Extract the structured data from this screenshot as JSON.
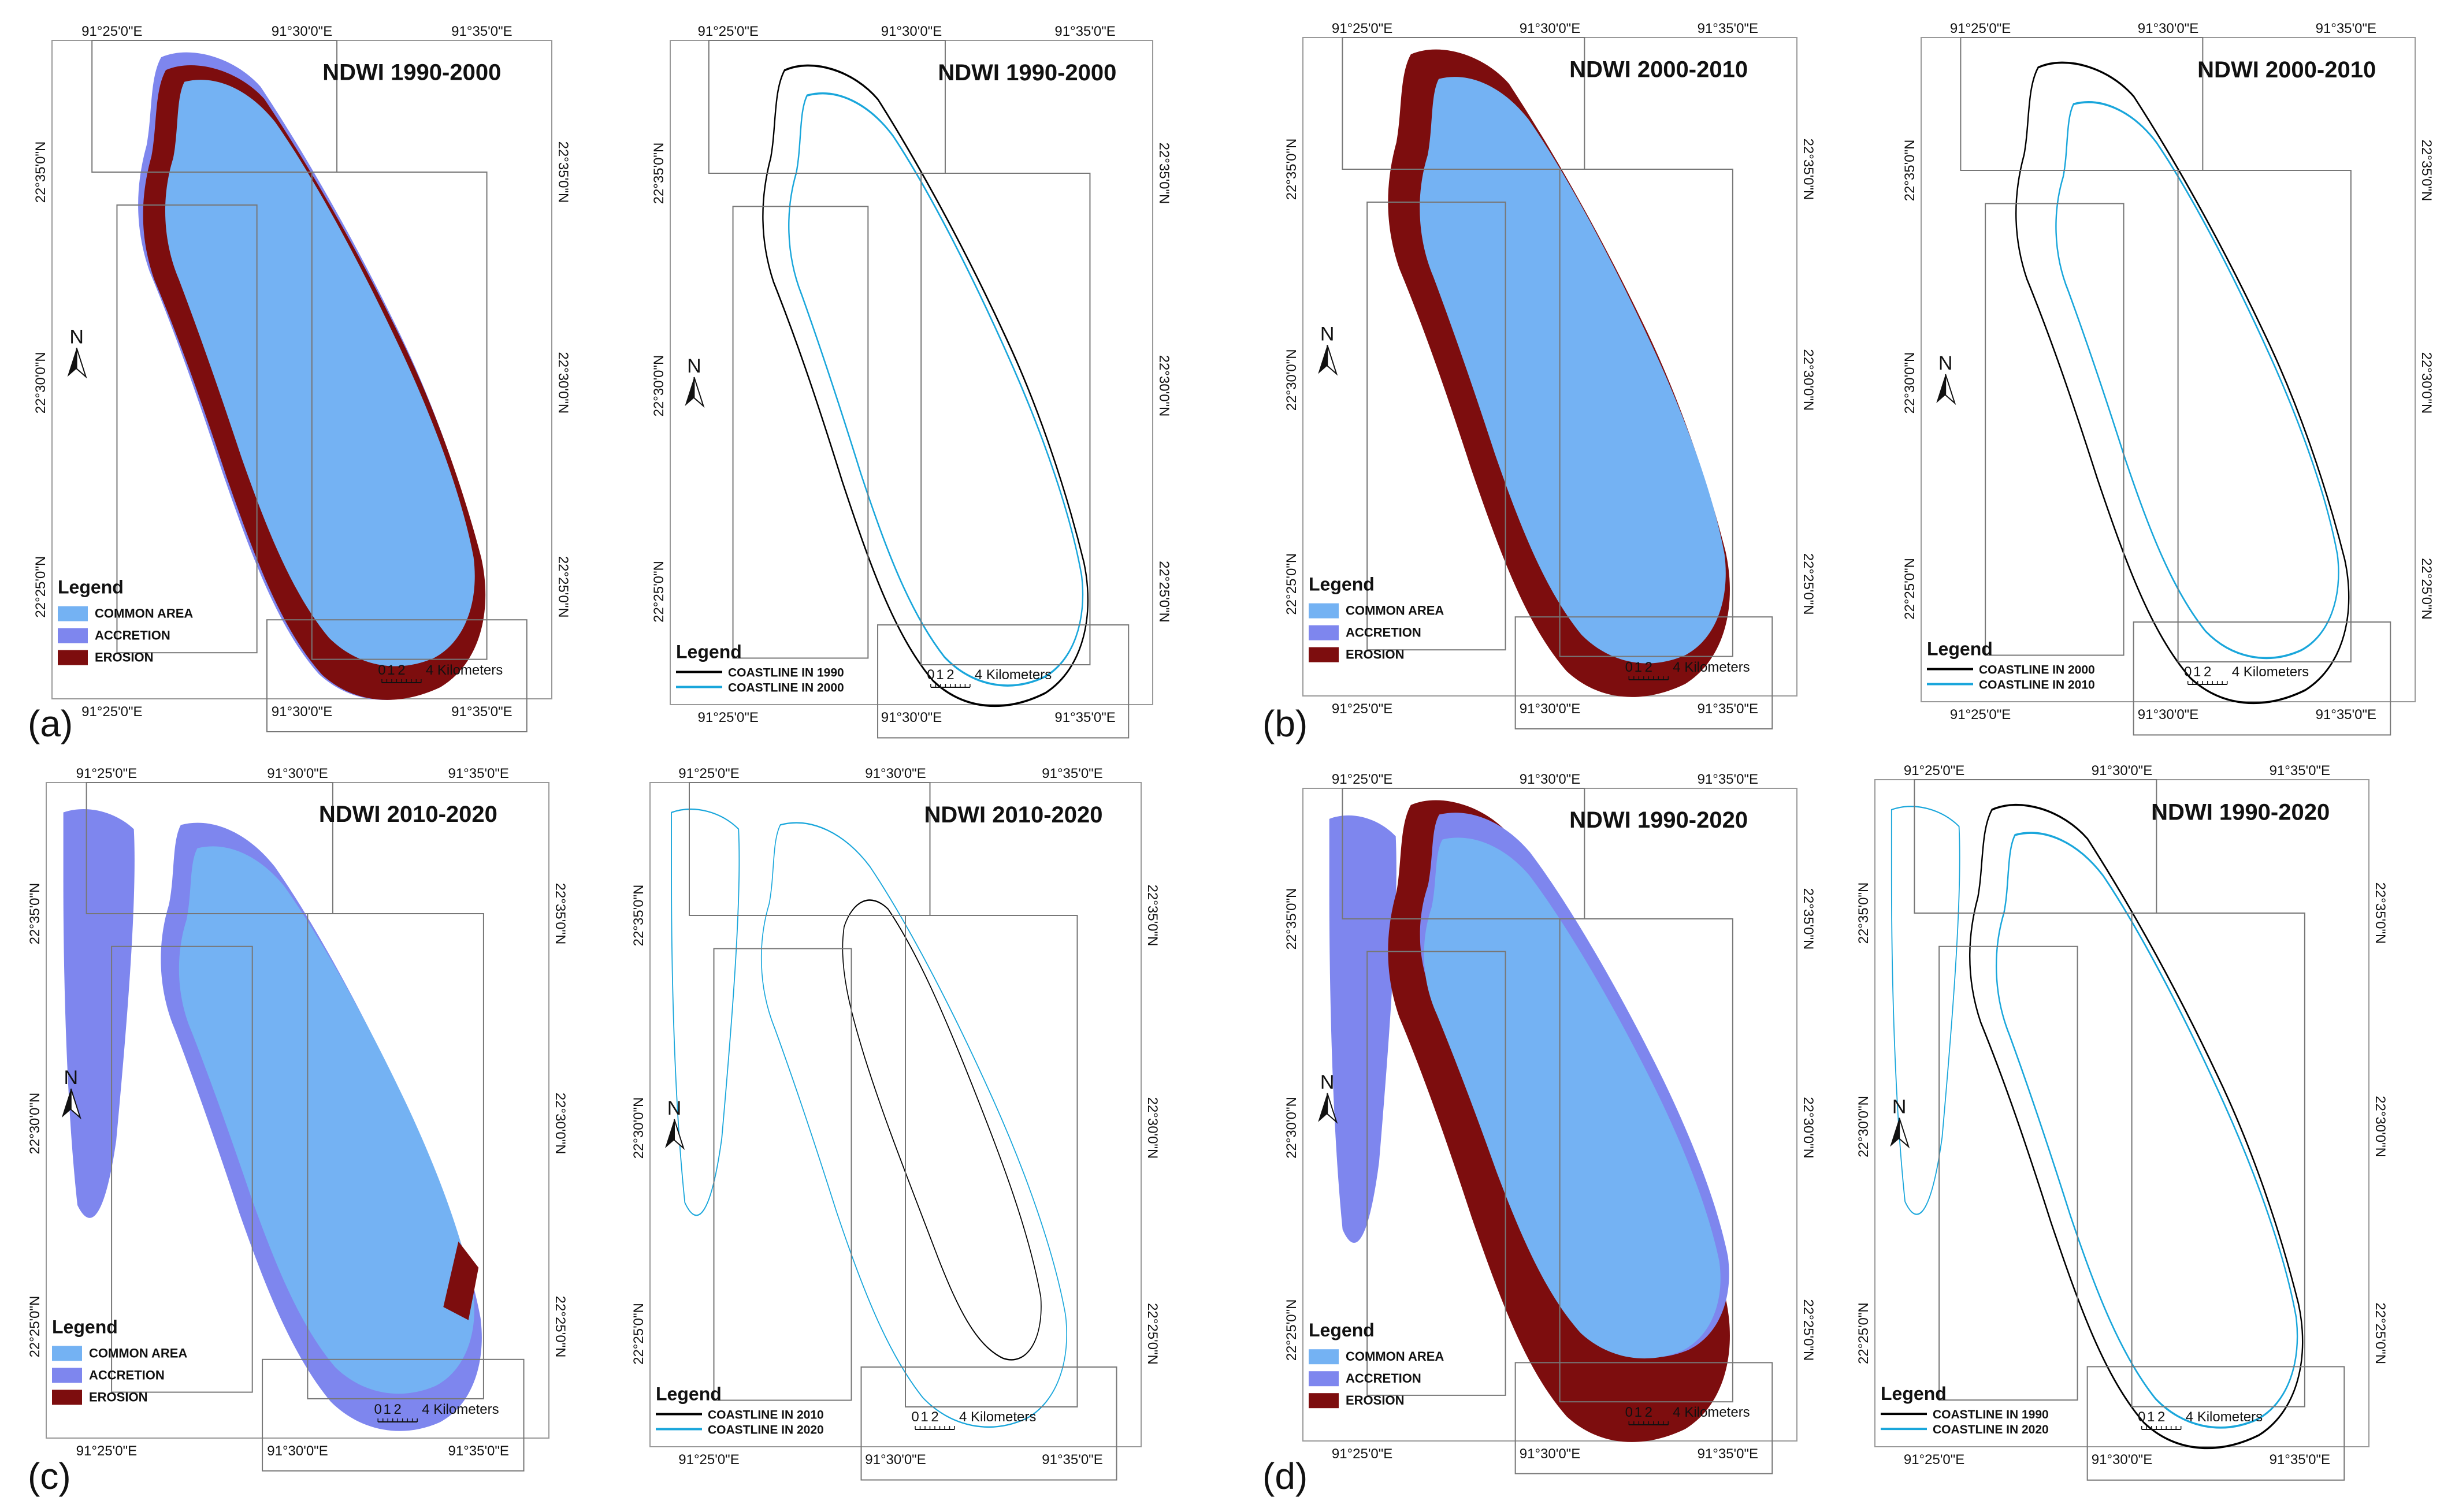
{
  "colors": {
    "common_area": "#74b2f3",
    "accretion": "#7e86ee",
    "erosion": "#7d0d0e",
    "coastline_old": "#000000",
    "coastline_new": "#19a6db"
  },
  "panels": [
    {
      "label": "(a)",
      "area_map": {
        "title": "NDWI 1990-2000",
        "top_ticks": [
          "91°25'0\"E",
          "91°30'0\"E",
          "91°35'0\"E"
        ],
        "bottom_ticks": [
          "91°25'0\"E",
          "91°30'0\"E",
          "91°35'0\"E"
        ],
        "left_ticks": [
          "22°35'0\"N",
          "22°30'0\"N",
          "22°25'0\"N"
        ],
        "right_ticks": [
          "22°35'0\"N",
          "22°30'0\"N",
          "22°25'0\"N"
        ],
        "north": "N",
        "legend_title": "Legend",
        "legend_items": [
          "COMMON AREA",
          "ACCRETION",
          "EROSION"
        ],
        "scale_labels": [
          "0",
          "1",
          "2",
          "4 Kilometers"
        ]
      },
      "line_map": {
        "title": "NDWI 1990-2000",
        "top_ticks": [
          "91°25'0\"E",
          "91°30'0\"E",
          "91°35'0\"E"
        ],
        "bottom_ticks": [
          "91°25'0\"E",
          "91°30'0\"E",
          "91°35'0\"E"
        ],
        "left_ticks": [
          "22°35'0\"N",
          "22°30'0\"N",
          "22°25'0\"N"
        ],
        "right_ticks": [
          "22°35'0\"N",
          "22°30'0\"N",
          "22°25'0\"N"
        ],
        "north": "N",
        "legend_title": "Legend",
        "legend_items": [
          "COASTLINE IN 1990",
          "COASTLINE IN 2000"
        ],
        "scale_labels": [
          "0",
          "1",
          "2",
          "4 Kilometers"
        ]
      }
    },
    {
      "label": "(b)",
      "area_map": {
        "title": "NDWI 2000-2010",
        "top_ticks": [
          "91°25'0\"E",
          "91°30'0\"E",
          "91°35'0\"E"
        ],
        "bottom_ticks": [
          "91°25'0\"E",
          "91°30'0\"E",
          "91°35'0\"E"
        ],
        "left_ticks": [
          "22°35'0\"N",
          "22°30'0\"N",
          "22°25'0\"N"
        ],
        "right_ticks": [
          "22°35'0\"N",
          "22°30'0\"N",
          "22°25'0\"N"
        ],
        "north": "N",
        "legend_title": "Legend",
        "legend_items": [
          "COMMON AREA",
          "ACCRETION",
          "EROSION"
        ],
        "scale_labels": [
          "0",
          "1",
          "2",
          "4 Kilometers"
        ]
      },
      "line_map": {
        "title": "NDWI 2000-2010",
        "top_ticks": [
          "91°25'0\"E",
          "91°30'0\"E",
          "91°35'0\"E"
        ],
        "bottom_ticks": [
          "91°25'0\"E",
          "91°30'0\"E",
          "91°35'0\"E"
        ],
        "left_ticks": [
          "22°35'0\"N",
          "22°30'0\"N",
          "22°25'0\"N"
        ],
        "right_ticks": [
          "22°35'0\"N",
          "22°30'0\"N",
          "22°25'0\"N"
        ],
        "north": "N",
        "legend_title": "Legend",
        "legend_items": [
          "COASTLINE IN 2000",
          "COASTLINE IN 2010"
        ],
        "scale_labels": [
          "0",
          "1",
          "2",
          "4 Kilometers"
        ]
      }
    },
    {
      "label": "(c)",
      "area_map": {
        "title": "NDWI 2010-2020",
        "top_ticks": [
          "91°25'0\"E",
          "91°30'0\"E",
          "91°35'0\"E"
        ],
        "bottom_ticks": [
          "91°25'0\"E",
          "91°30'0\"E",
          "91°35'0\"E"
        ],
        "left_ticks": [
          "22°35'0\"N",
          "22°30'0\"N",
          "22°25'0\"N"
        ],
        "right_ticks": [
          "22°35'0\"N",
          "22°30'0\"N",
          "22°25'0\"N"
        ],
        "north": "N",
        "legend_title": "Legend",
        "legend_items": [
          "COMMON AREA",
          "ACCRETION",
          "EROSION"
        ],
        "scale_labels": [
          "0",
          "1",
          "2",
          "4 Kilometers"
        ]
      },
      "line_map": {
        "title": "NDWI 2010-2020",
        "top_ticks": [
          "91°25'0\"E",
          "91°30'0\"E",
          "91°35'0\"E"
        ],
        "bottom_ticks": [
          "91°25'0\"E",
          "91°30'0\"E",
          "91°35'0\"E"
        ],
        "left_ticks": [
          "22°35'0\"N",
          "22°30'0\"N",
          "22°25'0\"N"
        ],
        "right_ticks": [
          "22°35'0\"N",
          "22°30'0\"N",
          "22°25'0\"N"
        ],
        "north": "N",
        "legend_title": "Legend",
        "legend_items": [
          "COASTLINE IN 2010",
          "COASTLINE IN 2020"
        ],
        "scale_labels": [
          "0",
          "1",
          "2",
          "4 Kilometers"
        ]
      }
    },
    {
      "label": "(d)",
      "area_map": {
        "title": "NDWI 1990-2020",
        "top_ticks": [
          "91°25'0\"E",
          "91°30'0\"E",
          "91°35'0\"E"
        ],
        "bottom_ticks": [
          "91°25'0\"E",
          "91°30'0\"E",
          "91°35'0\"E"
        ],
        "left_ticks": [
          "22°35'0\"N",
          "22°30'0\"N",
          "22°25'0\"N"
        ],
        "right_ticks": [
          "22°35'0\"N",
          "22°30'0\"N",
          "22°25'0\"N"
        ],
        "north": "N",
        "legend_title": "Legend",
        "legend_items": [
          "COMMON AREA",
          "ACCRETION",
          "EROSION"
        ],
        "scale_labels": [
          "0",
          "1",
          "2",
          "4 Kilometers"
        ]
      },
      "line_map": {
        "title": "NDWI 1990-2020",
        "top_ticks": [
          "91°25'0\"E",
          "91°30'0\"E",
          "91°35'0\"E"
        ],
        "bottom_ticks": [
          "91°25'0\"E",
          "91°30'0\"E",
          "91°35'0\"E"
        ],
        "left_ticks": [
          "22°35'0\"N",
          "22°30'0\"N",
          "22°25'0\"N"
        ],
        "right_ticks": [
          "22°35'0\"N",
          "22°30'0\"N",
          "22°25'0\"N"
        ],
        "north": "N",
        "legend_title": "Legend",
        "legend_items": [
          "COASTLINE IN 1990",
          "COASTLINE IN 2020"
        ],
        "scale_labels": [
          "0",
          "1",
          "2",
          "4 Kilometers"
        ]
      }
    }
  ]
}
